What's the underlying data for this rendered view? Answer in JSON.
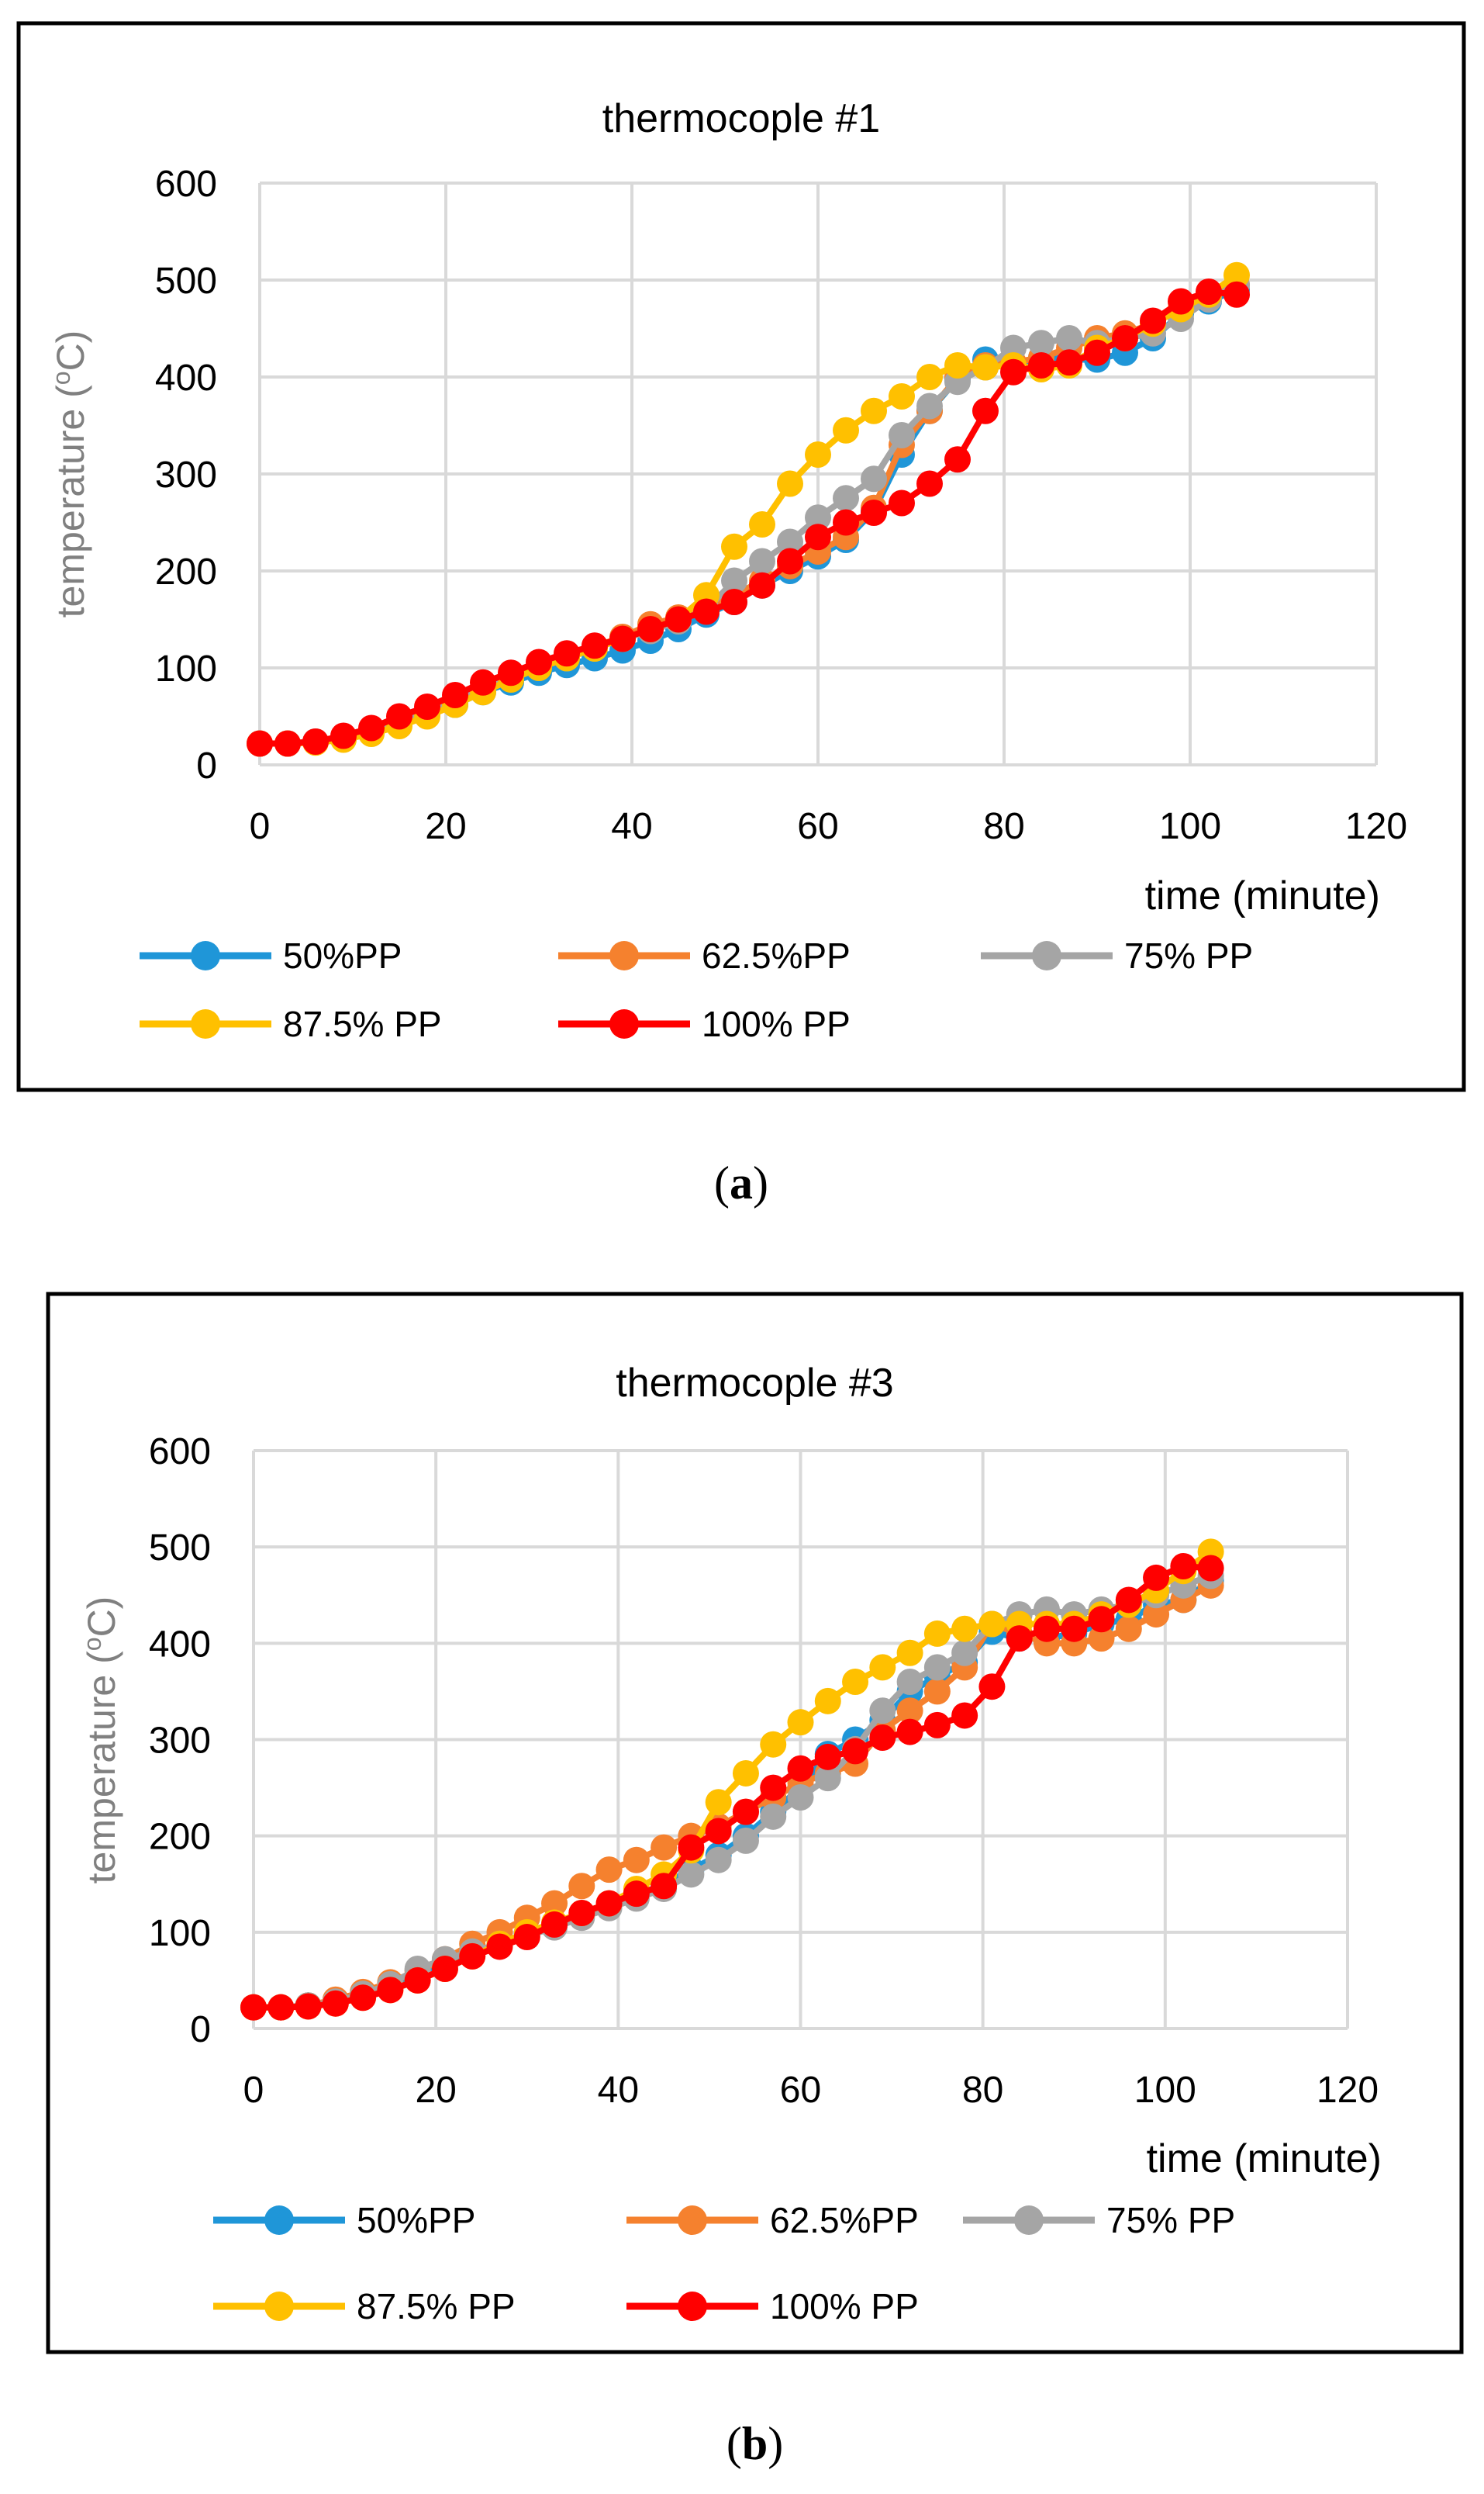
{
  "colors": {
    "s50": "#1f96d8",
    "s62": "#f5812e",
    "s75": "#a5a5a5",
    "s87": "#ffc000",
    "s100": "#ff0000"
  },
  "chart_data": [
    {
      "type": "line",
      "title": "thermocople #1",
      "xlabel": "time (minute)",
      "ylabel": "temperature (",
      "ylabel_sup": "o",
      "ylabel_end": "C)",
      "xlim": [
        0,
        120
      ],
      "ylim": [
        0,
        600
      ],
      "xticks": [
        "0",
        "20",
        "40",
        "60",
        "80",
        "100",
        "120"
      ],
      "yticks": [
        "0",
        "100",
        "200",
        "300",
        "400",
        "500",
        "600"
      ],
      "caption_open": "(",
      "caption_letter": "a",
      "caption_close": ")",
      "series": [
        {
          "name": "50%PP",
          "color_key": "s50",
          "x": [
            0,
            3,
            6,
            9,
            12,
            15,
            18,
            21,
            24,
            27,
            30,
            33,
            36,
            39,
            42,
            45,
            48,
            51,
            54,
            57,
            60,
            63,
            66,
            69,
            72,
            75,
            78,
            81,
            84,
            87,
            90,
            93,
            96,
            99,
            102,
            105
          ],
          "y": [
            22,
            22,
            24,
            27,
            33,
            42,
            52,
            62,
            75,
            85,
            95,
            103,
            110,
            118,
            128,
            140,
            155,
            168,
            185,
            200,
            215,
            232,
            262,
            320,
            365,
            398,
            418,
            412,
            420,
            418,
            418,
            425,
            440,
            465,
            478,
            490
          ]
        },
        {
          "name": "62.5%PP",
          "color_key": "s62",
          "x": [
            0,
            3,
            6,
            9,
            12,
            15,
            18,
            21,
            24,
            27,
            30,
            33,
            36,
            39,
            42,
            45,
            48,
            51,
            54,
            57,
            60,
            63,
            66,
            69,
            72,
            75,
            78,
            81,
            84,
            87,
            90,
            93,
            96,
            99,
            102,
            105
          ],
          "y": [
            22,
            22,
            24,
            28,
            35,
            45,
            55,
            68,
            80,
            92,
            102,
            112,
            122,
            132,
            145,
            152,
            162,
            175,
            190,
            205,
            220,
            235,
            265,
            330,
            365,
            400,
            412,
            415,
            420,
            430,
            440,
            445,
            455,
            470,
            485,
            495
          ]
        },
        {
          "name": "75% PP",
          "color_key": "s75",
          "x": [
            0,
            3,
            6,
            9,
            12,
            15,
            18,
            21,
            24,
            27,
            30,
            33,
            36,
            39,
            42,
            45,
            48,
            51,
            54,
            57,
            60,
            63,
            66,
            69,
            72,
            75,
            78,
            81,
            84,
            87,
            90,
            93,
            96,
            99,
            102,
            105
          ],
          "y": [
            22,
            22,
            24,
            28,
            35,
            44,
            54,
            66,
            78,
            90,
            100,
            110,
            120,
            130,
            138,
            148,
            160,
            190,
            210,
            230,
            255,
            275,
            295,
            340,
            370,
            395,
            410,
            430,
            435,
            440,
            435,
            440,
            445,
            460,
            480,
            495
          ]
        },
        {
          "name": "87.5% PP",
          "color_key": "s87",
          "x": [
            0,
            3,
            6,
            9,
            12,
            15,
            18,
            21,
            24,
            27,
            30,
            33,
            36,
            39,
            42,
            45,
            48,
            51,
            54,
            57,
            60,
            63,
            66,
            69,
            72,
            75,
            78,
            81,
            84,
            87,
            90,
            93,
            96,
            99,
            102,
            105
          ],
          "y": [
            22,
            22,
            23,
            26,
            32,
            40,
            50,
            62,
            75,
            88,
            100,
            110,
            120,
            130,
            140,
            150,
            175,
            225,
            248,
            290,
            320,
            345,
            365,
            380,
            400,
            412,
            410,
            412,
            408,
            412,
            430,
            440,
            455,
            470,
            485,
            505
          ]
        },
        {
          "name": "100% PP",
          "color_key": "s100",
          "x": [
            0,
            3,
            6,
            9,
            12,
            15,
            18,
            21,
            24,
            27,
            30,
            33,
            36,
            39,
            42,
            45,
            48,
            51,
            54,
            57,
            60,
            63,
            66,
            69,
            72,
            75,
            78,
            81,
            84,
            87,
            90,
            93,
            96,
            99,
            102,
            105
          ],
          "y": [
            22,
            22,
            24,
            30,
            38,
            50,
            60,
            72,
            85,
            95,
            106,
            115,
            123,
            130,
            140,
            150,
            158,
            168,
            185,
            210,
            235,
            250,
            260,
            270,
            290,
            315,
            365,
            405,
            412,
            415,
            425,
            440,
            458,
            478,
            488,
            485
          ]
        }
      ]
    },
    {
      "type": "line",
      "title": "thermocople #3",
      "xlabel": "time (minute)",
      "ylabel": "temperature (",
      "ylabel_sup": "o",
      "ylabel_end": "C)",
      "xlim": [
        0,
        120
      ],
      "ylim": [
        0,
        600
      ],
      "xticks": [
        "0",
        "20",
        "40",
        "60",
        "80",
        "100",
        "120"
      ],
      "yticks": [
        "0",
        "100",
        "200",
        "300",
        "400",
        "500",
        "600"
      ],
      "caption_open": "(",
      "caption_letter": "b",
      "caption_close": ")",
      "series": [
        {
          "name": "50%PP",
          "color_key": "s50",
          "x": [
            0,
            3,
            6,
            9,
            12,
            15,
            18,
            21,
            24,
            27,
            30,
            33,
            36,
            39,
            42,
            45,
            48,
            51,
            54,
            57,
            60,
            63,
            66,
            69,
            72,
            75,
            78,
            81,
            84,
            87,
            90,
            93,
            96,
            99,
            102,
            105
          ],
          "y": [
            22,
            22,
            24,
            28,
            35,
            45,
            55,
            65,
            78,
            88,
            98,
            108,
            118,
            128,
            138,
            150,
            165,
            180,
            200,
            225,
            250,
            285,
            300,
            320,
            350,
            365,
            380,
            412,
            405,
            405,
            410,
            420,
            425,
            440,
            445,
            465
          ]
        },
        {
          "name": "62.5%PP",
          "color_key": "s62",
          "x": [
            0,
            3,
            6,
            9,
            12,
            15,
            18,
            21,
            24,
            27,
            30,
            33,
            36,
            39,
            42,
            45,
            48,
            51,
            54,
            57,
            60,
            63,
            66,
            69,
            72,
            75,
            78,
            81,
            84,
            87,
            90,
            93,
            96,
            99,
            102,
            105
          ],
          "y": [
            22,
            22,
            24,
            30,
            38,
            48,
            60,
            72,
            88,
            100,
            115,
            130,
            148,
            165,
            175,
            188,
            200,
            210,
            225,
            240,
            255,
            265,
            275,
            310,
            330,
            350,
            375,
            420,
            410,
            400,
            400,
            405,
            415,
            430,
            445,
            460
          ]
        },
        {
          "name": "75% PP",
          "color_key": "s75",
          "x": [
            0,
            3,
            6,
            9,
            12,
            15,
            18,
            21,
            24,
            27,
            30,
            33,
            36,
            39,
            42,
            45,
            48,
            51,
            54,
            57,
            60,
            63,
            66,
            69,
            72,
            75,
            78,
            81,
            84,
            87,
            90,
            93,
            96,
            99,
            102,
            105
          ],
          "y": [
            22,
            22,
            24,
            28,
            36,
            46,
            62,
            72,
            80,
            88,
            96,
            105,
            115,
            125,
            135,
            145,
            160,
            175,
            195,
            220,
            240,
            260,
            290,
            330,
            360,
            375,
            390,
            420,
            430,
            435,
            430,
            435,
            440,
            450,
            460,
            470
          ]
        },
        {
          "name": "87.5% PP",
          "color_key": "s87",
          "x": [
            0,
            3,
            6,
            9,
            12,
            15,
            18,
            21,
            24,
            27,
            30,
            33,
            36,
            39,
            42,
            45,
            48,
            51,
            54,
            57,
            60,
            63,
            66,
            69,
            72,
            75,
            78,
            81,
            84,
            87,
            90,
            93,
            96,
            99,
            102,
            105
          ],
          "y": [
            22,
            22,
            23,
            26,
            32,
            40,
            50,
            62,
            75,
            88,
            100,
            110,
            120,
            130,
            145,
            160,
            185,
            235,
            265,
            295,
            318,
            340,
            360,
            375,
            390,
            410,
            415,
            420,
            420,
            420,
            420,
            430,
            440,
            455,
            475,
            495
          ]
        },
        {
          "name": "100% PP",
          "color_key": "s100",
          "x": [
            0,
            3,
            6,
            9,
            12,
            15,
            18,
            21,
            24,
            27,
            30,
            33,
            36,
            39,
            42,
            45,
            48,
            51,
            54,
            57,
            60,
            63,
            66,
            69,
            72,
            75,
            78,
            81,
            84,
            87,
            90,
            93,
            96,
            99,
            102,
            105
          ],
          "y": [
            22,
            22,
            23,
            26,
            32,
            40,
            50,
            62,
            75,
            85,
            95,
            108,
            120,
            130,
            140,
            148,
            188,
            205,
            225,
            250,
            270,
            282,
            288,
            302,
            308,
            315,
            325,
            355,
            405,
            415,
            415,
            425,
            445,
            468,
            480,
            478
          ]
        }
      ]
    }
  ]
}
